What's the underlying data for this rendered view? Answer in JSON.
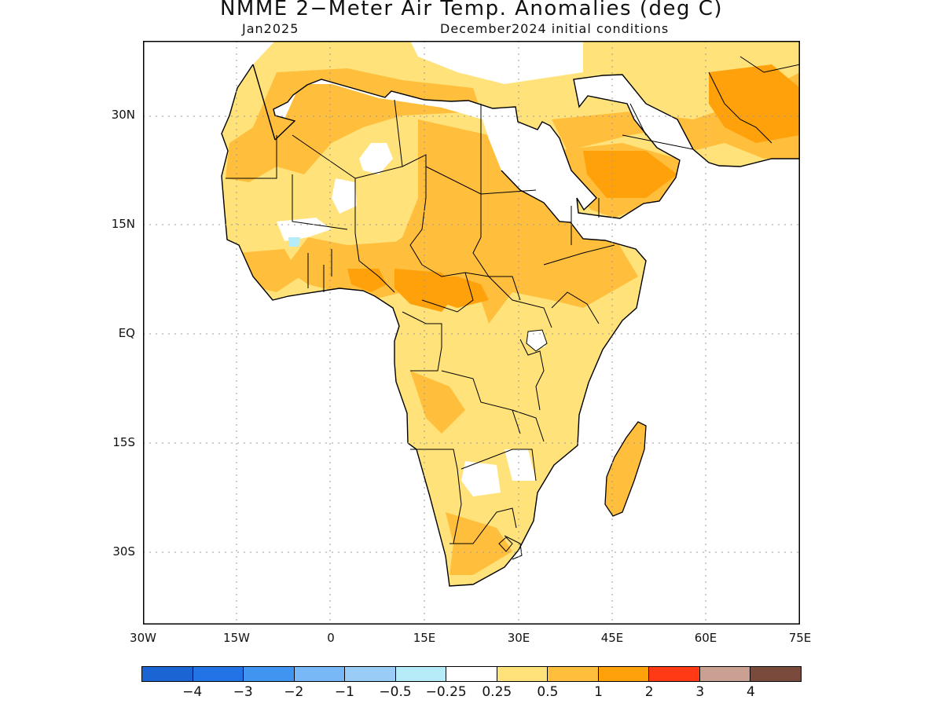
{
  "title": "NMME 2−Meter Air Temp. Anomalies (deg C)",
  "subtitle_left": "Jan2025",
  "subtitle_right": "December2024 initial conditions",
  "lat_labels": [
    "30N",
    "15N",
    "EQ",
    "15S",
    "30S"
  ],
  "lon_labels": [
    "30W",
    "15W",
    "0",
    "15E",
    "30E",
    "45E",
    "60E",
    "75E"
  ],
  "colorbar": {
    "colors": [
      "#1a64d4",
      "#2273e6",
      "#3f95f0",
      "#78b8f7",
      "#99cdf7",
      "#b6ecf7",
      "#ffffff",
      "#ffe27a",
      "#ffbe3c",
      "#ffa10a",
      "#ff3a14",
      "#c9a091",
      "#7a4a3c"
    ],
    "labels": [
      "−4",
      "−3",
      "−2",
      "−1",
      "−0.5",
      "−0.25",
      "0.25",
      "0.5",
      "1",
      "2",
      "3",
      "4"
    ]
  },
  "map_colors": {
    "land_default": "#ffe27a",
    "anom_1_2": "#ffbe3c",
    "anom_2_3": "#ffa10a",
    "neutral": "#ffffff",
    "cool": "#b6ecf7"
  }
}
